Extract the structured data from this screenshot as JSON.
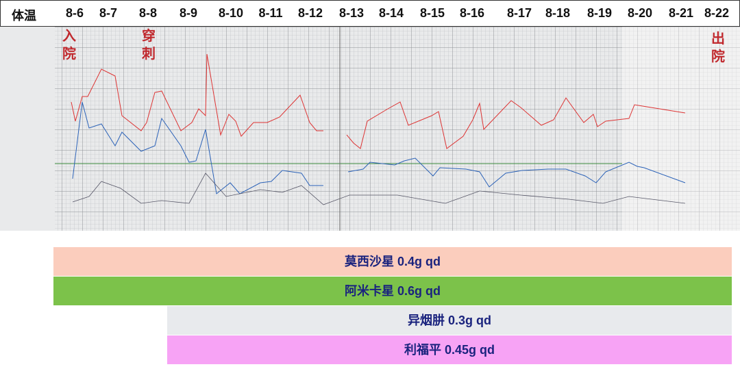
{
  "header": {
    "label": "体温",
    "dates": [
      "8-6",
      "8-7",
      "8-8",
      "8-9",
      "8-10",
      "8-11",
      "8-12",
      "8-13",
      "8-14",
      "8-15",
      "8-16",
      "8-17",
      "8-18",
      "8-19",
      "8-20",
      "8-21",
      "8-22"
    ]
  },
  "annotations": [
    "入院",
    "穿刺",
    "出院"
  ],
  "medications": [
    "莫西沙星 0.4g qd",
    "阿米卡星 0.6g qd",
    "异烟肼 0.3g qd",
    "利福平 0.45g qd"
  ]
}
